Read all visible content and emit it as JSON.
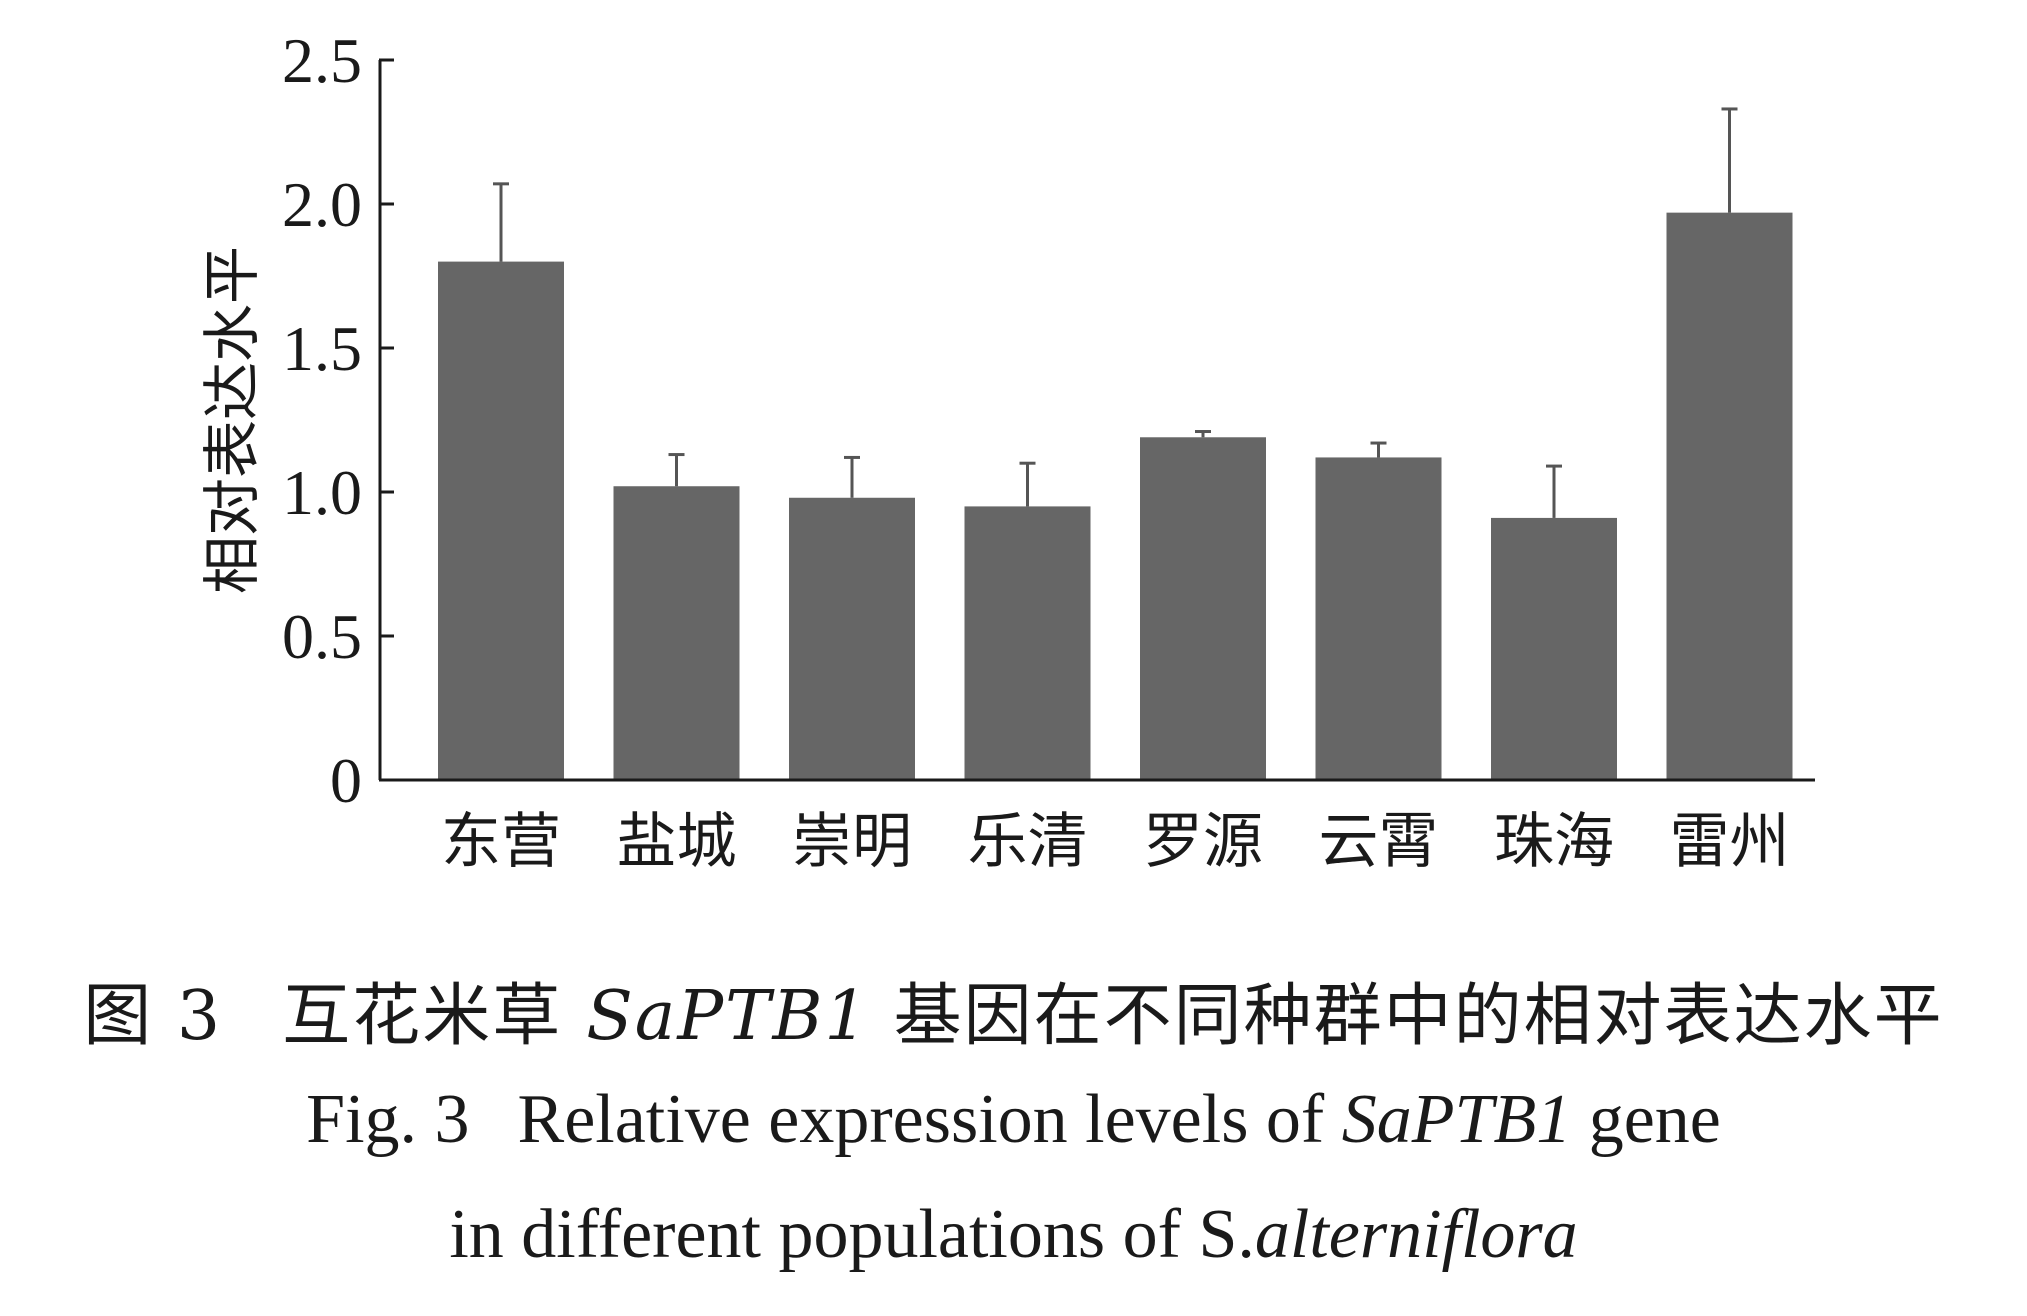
{
  "chart_data": {
    "type": "bar",
    "categories": [
      "东营",
      "盐城",
      "崇明",
      "乐清",
      "罗源",
      "云霄",
      "珠海",
      "雷州"
    ],
    "values": [
      1.8,
      1.02,
      0.98,
      0.95,
      1.19,
      1.12,
      0.91,
      1.97
    ],
    "errors": [
      0.27,
      0.11,
      0.14,
      0.15,
      0.02,
      0.05,
      0.18,
      0.36
    ],
    "ylabel": "相对表达水平",
    "xlabel": "",
    "ylim": [
      0,
      2.5
    ],
    "yticks": [
      "0",
      "0.5",
      "1.0",
      "1.5",
      "2.0",
      "2.5"
    ],
    "bar_color": "#666666",
    "error_color": "#555555",
    "axis_color": "#1a1a1a",
    "grid": false
  },
  "caption": {
    "cn_prefix": "图 3",
    "cn_a": "互花米草",
    "cn_gene": "SaPTB1",
    "cn_b": "基因在不同种群中的相对表达水平",
    "en_prefix": "Fig. 3",
    "en_a": "Relative expression levels of",
    "en_gene": "SaPTB1",
    "en_b": "gene",
    "en_c": "in different populations of",
    "en_genus": "S.",
    "en_species": "alterniflora"
  }
}
